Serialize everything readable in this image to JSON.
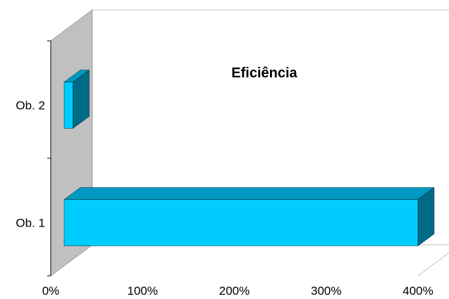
{
  "chart_data": {
    "type": "bar",
    "orientation": "horizontal",
    "style": "3d",
    "title": "Eficiência",
    "categories": [
      "Ob. 1",
      "Ob. 2"
    ],
    "values": [
      400,
      10
    ],
    "xlim": [
      0,
      400
    ],
    "x_ticks": [
      "0%",
      "100%",
      "200%",
      "300%",
      "400%"
    ],
    "legend": "none",
    "grid": false,
    "colors": {
      "bar_front": "#00CCFF",
      "bar_top": "#0099C2",
      "bar_side": "#006B86",
      "wall": "#C0C0C0",
      "wall_edge": "#A0A0A0",
      "floor_edge": "#C0C0C0"
    }
  }
}
